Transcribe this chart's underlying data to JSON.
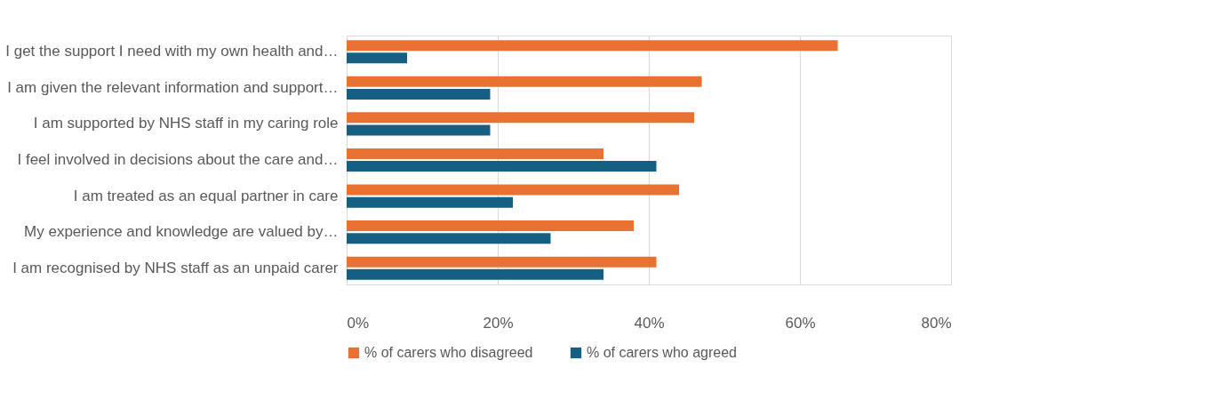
{
  "chart_data": {
    "type": "bar",
    "orientation": "horizontal",
    "categories": [
      "I get the support I need with my own health and…",
      "I am given the relevant information and support…",
      "I am supported by NHS staff in my caring role",
      "I feel involved in decisions about the care and…",
      "I am treated as an equal partner in care",
      "My experience and knowledge are valued by…",
      "I am recognised by NHS staff as an unpaid carer"
    ],
    "series": [
      {
        "name": "% of carers who disagreed",
        "color": "#e97132",
        "values": [
          65,
          47,
          46,
          34,
          44,
          38,
          41
        ]
      },
      {
        "name": "% of carers who agreed",
        "color": "#156082",
        "values": [
          8,
          19,
          19,
          41,
          22,
          27,
          34
        ]
      }
    ],
    "xlim": [
      0,
      80
    ],
    "xticks": [
      {
        "value": 0,
        "label": "0%"
      },
      {
        "value": 20,
        "label": "20%"
      },
      {
        "value": 40,
        "label": "40%"
      },
      {
        "value": 60,
        "label": "60%"
      },
      {
        "value": 80,
        "label": "80%"
      }
    ],
    "grid": "x",
    "legend": "bottom"
  }
}
